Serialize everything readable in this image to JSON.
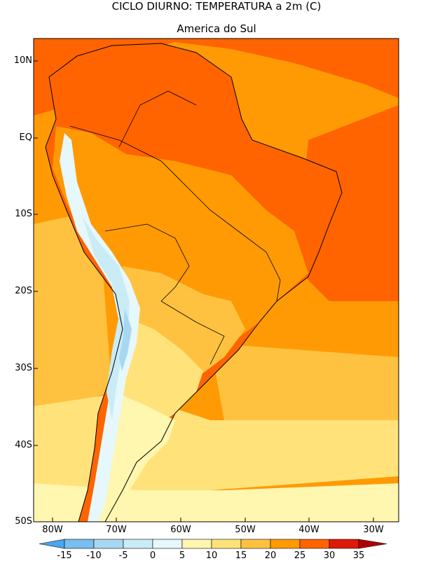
{
  "title": "CICLO DIURNO: TEMPERATURA a 2m (C)",
  "subtitle": "America do Sul",
  "y_axis_labels": [
    "10N",
    "EQ",
    "10S",
    "20S",
    "30S",
    "40S",
    "50S"
  ],
  "x_axis_labels": [
    "80W",
    "70W",
    "60W",
    "50W",
    "40W",
    "30W"
  ],
  "colorbar": {
    "labels": [
      "-15",
      "-10",
      "-5",
      "0",
      "5",
      "10",
      "15",
      "20",
      "25",
      "30",
      "35"
    ],
    "colors": [
      "#4aa6f0",
      "#78beef",
      "#a8d7f2",
      "#c9ecf7",
      "#e6f8fb",
      "#fff6b0",
      "#ffe37a",
      "#ffc240",
      "#ff9a05",
      "#ff6400",
      "#de1a08",
      "#b00000"
    ]
  },
  "palette": {
    "t_hot": "#ff6400",
    "t_warm": "#ff9a05",
    "t_mid": "#ffc240",
    "t_mild": "#ffe37a",
    "t_cool": "#fff6b0",
    "t_cold": "#e6f8fb",
    "t_colder": "#c9ecf7",
    "t_frozen": "#a8d7f2"
  }
}
